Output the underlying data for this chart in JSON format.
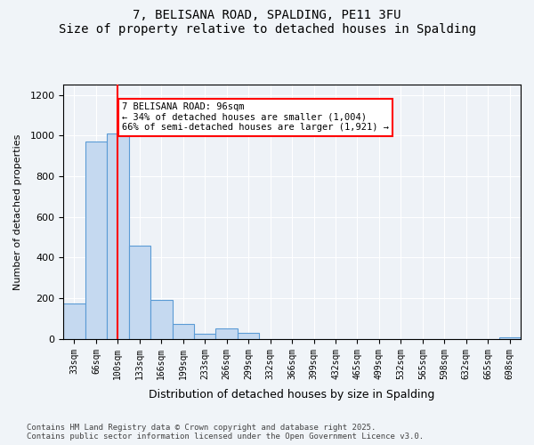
{
  "title_line1": "7, BELISANA ROAD, SPALDING, PE11 3FU",
  "title_line2": "Size of property relative to detached houses in Spalding",
  "xlabel": "Distribution of detached houses by size in Spalding",
  "ylabel": "Number of detached properties",
  "categories": [
    "33sqm",
    "66sqm",
    "100sqm",
    "133sqm",
    "166sqm",
    "199sqm",
    "233sqm",
    "266sqm",
    "299sqm",
    "332sqm",
    "366sqm",
    "399sqm",
    "432sqm",
    "465sqm",
    "499sqm",
    "532sqm",
    "565sqm",
    "598sqm",
    "632sqm",
    "665sqm",
    "698sqm"
  ],
  "values": [
    175,
    970,
    1010,
    460,
    190,
    75,
    25,
    50,
    30,
    0,
    0,
    0,
    0,
    0,
    0,
    0,
    0,
    0,
    0,
    0,
    10
  ],
  "bar_color": "#c5d9f0",
  "bar_edge_color": "#5b9bd5",
  "property_size": 96,
  "property_label": "7 BELISANA ROAD: 96sqm",
  "annotation_line1": "← 34% of detached houses are smaller (1,004)",
  "annotation_line2": "66% of semi-detached houses are larger (1,921) →",
  "vline_color": "#ff0000",
  "vline_position": 2,
  "annotation_box_color": "#ff0000",
  "ylim": [
    0,
    1250
  ],
  "yticks": [
    0,
    200,
    400,
    600,
    800,
    1000,
    1200
  ],
  "footnote_line1": "Contains HM Land Registry data © Crown copyright and database right 2025.",
  "footnote_line2": "Contains public sector information licensed under the Open Government Licence v3.0.",
  "bg_color": "#f0f4f8",
  "plot_bg_color": "#eef2f7",
  "grid_color": "#ffffff"
}
